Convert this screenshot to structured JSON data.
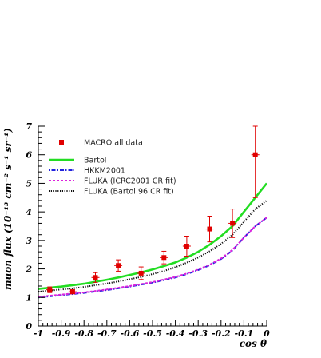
{
  "chart_data": {
    "type": "line",
    "xlabel": "cos θ",
    "ylabel": "muon flux (10⁻¹³ cm⁻² s⁻¹ sr⁻¹)",
    "xlim": [
      -1,
      0
    ],
    "ylim": [
      0,
      7
    ],
    "x_ticks": [
      "-1",
      "-0.9",
      "-0.8",
      "-0.7",
      "-0.6",
      "-0.5",
      "-0.4",
      "-0.3",
      "-0.2",
      "-0.1",
      "0"
    ],
    "y_ticks": [
      "0",
      "1",
      "2",
      "3",
      "4",
      "5",
      "6",
      "7"
    ],
    "grid": false,
    "legend_position": "top-left",
    "data_points": {
      "name": "MACRO all data",
      "color": "#e00000",
      "points": [
        {
          "x": -0.95,
          "y": 1.27,
          "err": 0.1
        },
        {
          "x": -0.85,
          "y": 1.2,
          "err": 0.07
        },
        {
          "x": -0.75,
          "y": 1.7,
          "err": 0.17
        },
        {
          "x": -0.65,
          "y": 2.12,
          "err": 0.2
        },
        {
          "x": -0.55,
          "y": 1.85,
          "err": 0.22
        },
        {
          "x": -0.45,
          "y": 2.4,
          "err": 0.22
        },
        {
          "x": -0.35,
          "y": 2.8,
          "err": 0.35
        },
        {
          "x": -0.25,
          "y": 3.4,
          "err": 0.45
        },
        {
          "x": -0.15,
          "y": 3.6,
          "err": 0.5
        },
        {
          "x": -0.05,
          "y": 6.0,
          "err": 1.5
        }
      ]
    },
    "series": [
      {
        "name": "Bartol",
        "color": "#22dd22",
        "style": "solid",
        "x": [
          -1,
          -0.95,
          -0.9,
          -0.85,
          -0.8,
          -0.75,
          -0.7,
          -0.65,
          -0.6,
          -0.55,
          -0.5,
          -0.45,
          -0.4,
          -0.35,
          -0.3,
          -0.25,
          -0.2,
          -0.15,
          -0.1,
          -0.05,
          0
        ],
        "values": [
          1.3,
          1.34,
          1.38,
          1.43,
          1.48,
          1.55,
          1.62,
          1.7,
          1.79,
          1.88,
          1.98,
          2.1,
          2.23,
          2.4,
          2.6,
          2.85,
          3.15,
          3.5,
          4.0,
          4.5,
          5.0
        ]
      },
      {
        "name": "HKKM2001",
        "color": "#2222dd",
        "style": "dashdot",
        "x": [
          -1,
          -0.95,
          -0.9,
          -0.85,
          -0.8,
          -0.75,
          -0.7,
          -0.65,
          -0.6,
          -0.55,
          -0.5,
          -0.45,
          -0.4,
          -0.35,
          -0.3,
          -0.25,
          -0.2,
          -0.15,
          -0.1,
          -0.05,
          0
        ],
        "values": [
          1.0,
          1.04,
          1.08,
          1.12,
          1.16,
          1.21,
          1.26,
          1.32,
          1.38,
          1.45,
          1.52,
          1.61,
          1.7,
          1.82,
          1.96,
          2.13,
          2.35,
          2.65,
          3.1,
          3.5,
          3.8
        ]
      },
      {
        "name": "FLUKA (ICRC2001 CR fit)",
        "color": "#dd22dd",
        "style": "dashed",
        "x": [
          -1,
          -0.95,
          -0.9,
          -0.85,
          -0.8,
          -0.75,
          -0.7,
          -0.65,
          -0.6,
          -0.55,
          -0.5,
          -0.45,
          -0.4,
          -0.35,
          -0.3,
          -0.25,
          -0.2,
          -0.15,
          -0.1,
          -0.05,
          0
        ],
        "values": [
          1.02,
          1.06,
          1.1,
          1.14,
          1.18,
          1.23,
          1.28,
          1.34,
          1.4,
          1.47,
          1.54,
          1.63,
          1.72,
          1.84,
          1.98,
          2.15,
          2.37,
          2.67,
          3.1,
          3.5,
          3.8
        ]
      },
      {
        "name": "FLUKA (Bartol 96 CR fit)",
        "color": "#111111",
        "style": "dotted",
        "x": [
          -1,
          -0.95,
          -0.9,
          -0.85,
          -0.8,
          -0.75,
          -0.7,
          -0.65,
          -0.6,
          -0.55,
          -0.5,
          -0.45,
          -0.4,
          -0.35,
          -0.3,
          -0.25,
          -0.2,
          -0.15,
          -0.1,
          -0.05,
          0
        ],
        "values": [
          1.2,
          1.24,
          1.28,
          1.32,
          1.37,
          1.43,
          1.49,
          1.56,
          1.64,
          1.72,
          1.82,
          1.93,
          2.06,
          2.22,
          2.4,
          2.62,
          2.88,
          3.2,
          3.65,
          4.1,
          4.4
        ]
      }
    ]
  }
}
